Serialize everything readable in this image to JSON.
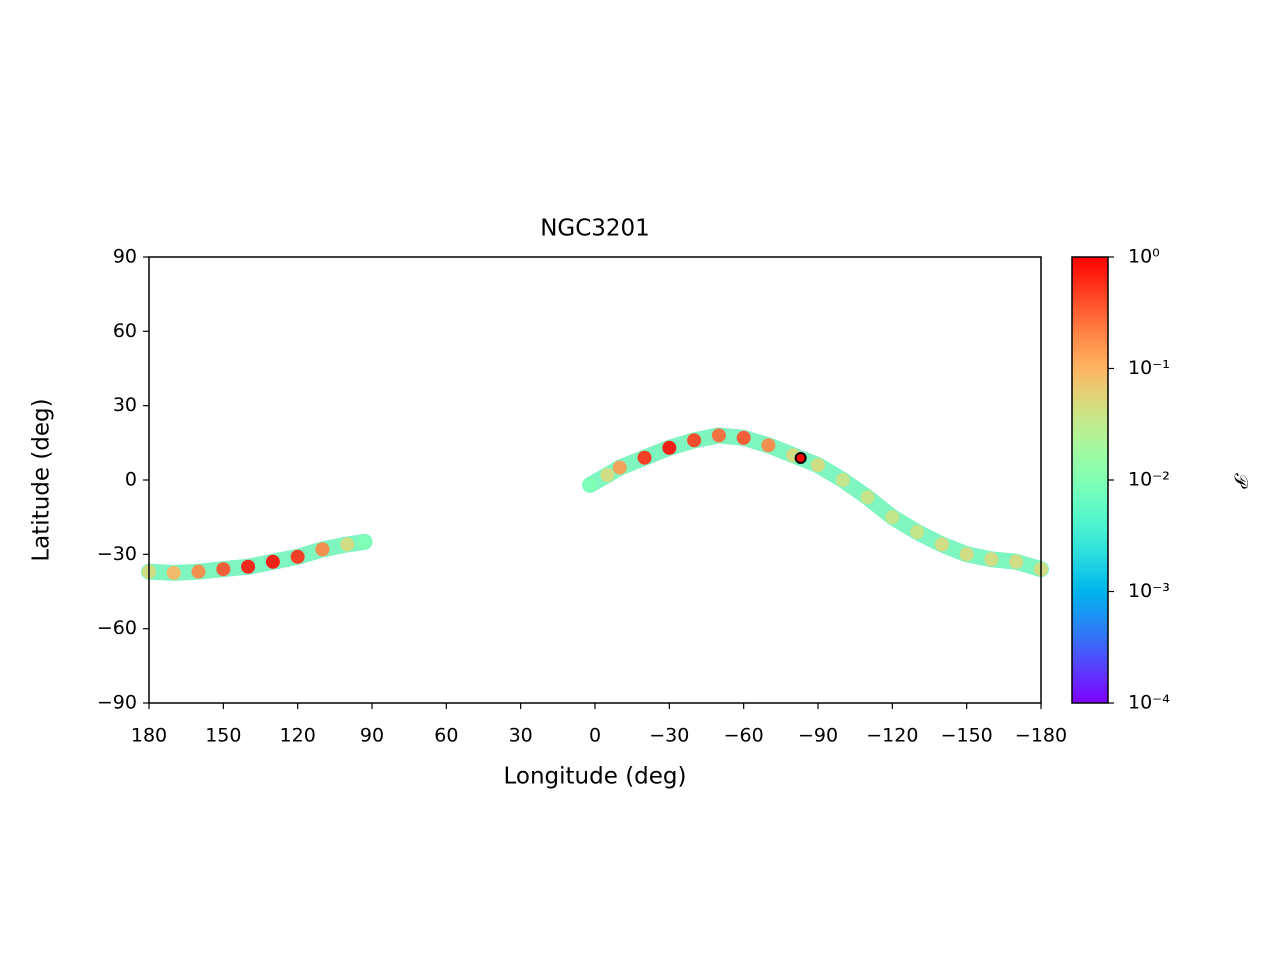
{
  "chart_data": {
    "type": "sky-density",
    "title": "NGC3201",
    "xlabel": "Longitude (deg)",
    "ylabel": "Latitude (deg)",
    "xlim": [
      180,
      -180
    ],
    "xticks": [
      180,
      150,
      120,
      90,
      60,
      30,
      0,
      {
        "value": -30,
        "label": "−30"
      },
      {
        "value": -60,
        "label": "−60"
      },
      {
        "value": -90,
        "label": "−90"
      },
      {
        "value": -120,
        "label": "−120"
      },
      {
        "value": -150,
        "label": "−150"
      },
      {
        "value": -180,
        "label": "−180"
      }
    ],
    "ylim": [
      -90,
      90
    ],
    "yticks": [
      {
        "value": -90,
        "label": "−90"
      },
      {
        "value": -60,
        "label": "−60"
      },
      {
        "value": -30,
        "label": "−30"
      },
      0,
      30,
      60,
      90
    ],
    "streams": [
      {
        "x": [
          180,
          170,
          160,
          150,
          140,
          130,
          120,
          110,
          100,
          93
        ],
        "y": [
          -37,
          -37.5,
          -37,
          -36,
          -35,
          -33,
          -31,
          -28,
          -26,
          -25
        ],
        "density": [
          0.05,
          0.1,
          0.2,
          0.4,
          0.8,
          0.9,
          0.6,
          0.2,
          0.05,
          0.01
        ]
      },
      {
        "x": [
          2,
          -5,
          -10,
          -20,
          -30,
          -40,
          -50,
          -60,
          -70,
          -80,
          -90,
          -100,
          -110,
          -120,
          -130,
          -140,
          -150,
          -160,
          -170,
          -180
        ],
        "y": [
          -2,
          2,
          5,
          9,
          13,
          16,
          18,
          17,
          14,
          10,
          6,
          0,
          -7,
          -15,
          -21,
          -26,
          -30,
          -32,
          -33,
          -36
        ],
        "density": [
          0.01,
          0.05,
          0.15,
          0.6,
          0.9,
          0.5,
          0.3,
          0.4,
          0.2,
          0.05,
          0.05,
          0.04,
          0.04,
          0.04,
          0.04,
          0.05,
          0.05,
          0.05,
          0.05,
          0.05
        ]
      }
    ],
    "marker": {
      "x": -83,
      "y": 8.9,
      "color": "#ff0000"
    },
    "colorbar": {
      "label": "𝒫",
      "scale": "log",
      "colormap": "rainbow",
      "lim": [
        0.0001,
        1
      ],
      "ticks": [
        {
          "value": 0.0001,
          "label": "10⁻⁴"
        },
        {
          "value": 0.001,
          "label": "10⁻³"
        },
        {
          "value": 0.01,
          "label": "10⁻²"
        },
        {
          "value": 0.1,
          "label": "10⁻¹"
        },
        {
          "value": 1,
          "label": "10⁰"
        }
      ]
    }
  }
}
